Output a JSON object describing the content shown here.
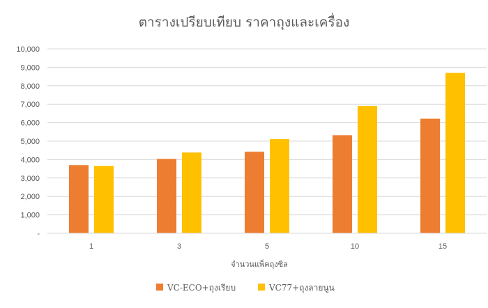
{
  "chart_data": {
    "type": "bar",
    "title": "ตารางเปรียบเทียบ ราคาถุงและเครื่อง",
    "xlabel": "จำนวนแพ็คถุงซิล",
    "ylabel": "",
    "categories": [
      "1",
      "3",
      "5",
      "10",
      "15"
    ],
    "series": [
      {
        "name": "VC-ECO+ถุงเรียบ",
        "color": "#ED7D31",
        "values": [
          3700,
          4030,
          4420,
          5320,
          6220
        ]
      },
      {
        "name": "VC77+ถุงลายนูน",
        "color": "#FFC000",
        "values": [
          3650,
          4380,
          5110,
          6900,
          8700
        ]
      }
    ],
    "ylim": [
      0,
      10000
    ],
    "yticks": [
      "-",
      "1,000",
      "2,000",
      "3,000",
      "4,000",
      "5,000",
      "6,000",
      "7,000",
      "8,000",
      "9,000",
      "10,000"
    ],
    "grid": true,
    "legend_position": "bottom"
  }
}
